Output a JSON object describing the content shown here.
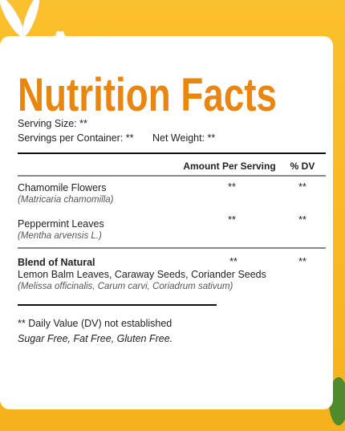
{
  "title": "Nutrition Facts",
  "serving": {
    "size": "Serving Size: **",
    "per_container": "Servings per Container: **",
    "net_weight": "Net Weight: **"
  },
  "table": {
    "headers": [
      "Amount Per Serving",
      "% DV"
    ],
    "rows": [
      {
        "name": "Chamomile Flowers",
        "latin": "(Matricaria chamomilla)",
        "amount": "**",
        "dv": "**"
      },
      {
        "name": "Peppermint Leaves",
        "latin": "(Mentha arvensis L.)",
        "amount": "**",
        "dv": "**"
      },
      {
        "name": "Blend of Natural",
        "detail": "Lemon Balm Leaves, Caraway Seeds, Coriander Seeds",
        "latin": "(Melissa officinalis, Carum carvi, Coriadrum sativum)",
        "amount": "**",
        "dv": "**"
      }
    ]
  },
  "footer": {
    "note": "** Daily Value (DV) not established",
    "claims": "Sugar Free, Fat Free, Gluten Free."
  }
}
